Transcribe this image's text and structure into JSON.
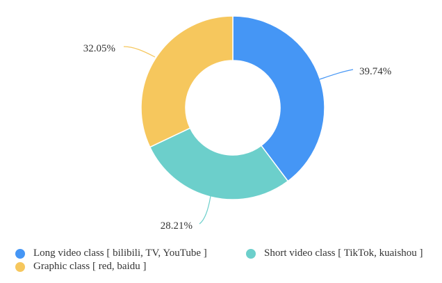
{
  "chart_data": {
    "type": "pie",
    "variant": "donut",
    "legend_position": "bottom",
    "slices": [
      {
        "label": "Long video class [ bilibili, TV, YouTube ]",
        "value": 39.74,
        "value_label": "39.74%",
        "color": "#4596f5"
      },
      {
        "label": "Short video class [ TikTok, kuaishou ]",
        "value": 28.21,
        "value_label": "28.21%",
        "color": "#6ccfcb"
      },
      {
        "label": "Graphic class [ red, baidu ]",
        "value": 32.05,
        "value_label": "32.05%",
        "color": "#f6c75d"
      }
    ]
  }
}
